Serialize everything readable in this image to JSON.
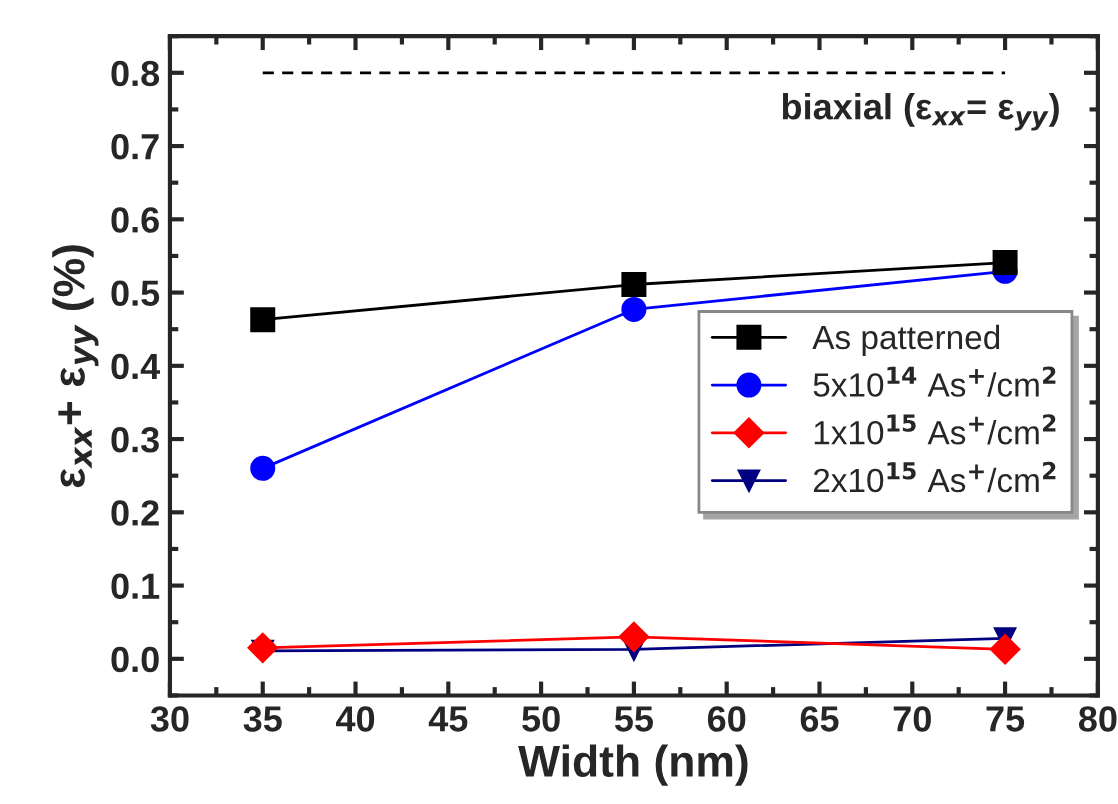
{
  "chart_data": {
    "type": "line",
    "xlabel": "Width (nm)",
    "ylabel": "ε$_{xx}$+ ε$_{yy}$ (%)",
    "x": [
      35,
      55,
      75
    ],
    "series": [
      {
        "name": "As patterned",
        "color": "#000000",
        "marker": "square",
        "values": [
          0.463,
          0.511,
          0.541
        ]
      },
      {
        "name": "5x10$^{14}$ As$^{+}$/cm$^{2}$",
        "color": "#0000ff",
        "marker": "circle",
        "values": [
          0.26,
          0.477,
          0.529
        ]
      },
      {
        "name": "1x10$^{15}$ As$^{+}$/cm$^{2}$",
        "color": "#ff0000",
        "marker": "diamond",
        "values": [
          0.015,
          0.03,
          0.013
        ]
      },
      {
        "name": "2x10$^{15}$ As$^{+}$/cm$^{2}$",
        "color": "#000080",
        "marker": "triangle",
        "values": [
          0.011,
          0.013,
          0.028
        ]
      },
      {
        "type": "line",
        "x": [
          35,
          75
        ],
        "color": "#000000",
        "marker": "none",
        "line_style": "dashed",
        "values": [
          0.8,
          0.8
        ]
      }
    ],
    "annotations": [
      "biaxial (ε$_{xx}$= ε$_{yy}$)"
    ],
    "xlim": [
      30,
      80
    ],
    "xticks": [
      30,
      35,
      40,
      45,
      50,
      55,
      60,
      65,
      70,
      75,
      80
    ],
    "ylim": [
      -0.05,
      0.85
    ],
    "yticks": [
      {
        "value": 0,
        "label": "0.0"
      },
      0.1,
      0.2,
      0.3,
      0.4,
      0.5,
      0.6,
      0.7,
      0.8
    ],
    "legend": "right",
    "grid": false
  }
}
